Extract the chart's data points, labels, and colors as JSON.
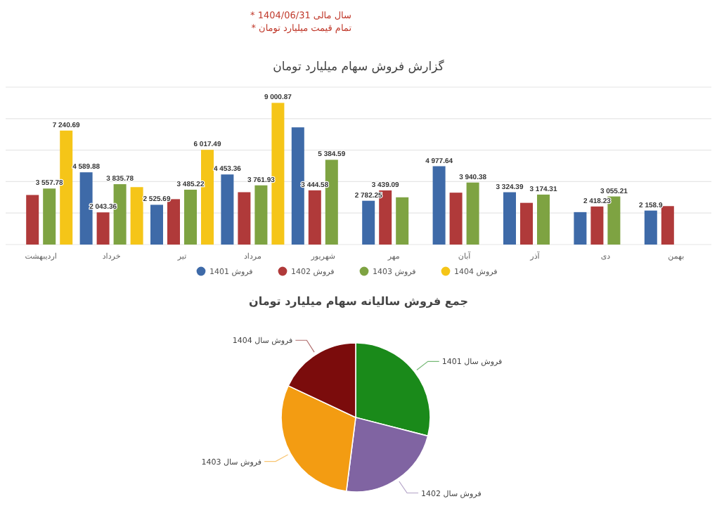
{
  "chart_data": [
    {
      "type": "bar",
      "title": "گزارش فروش سهام میلیارد تومان",
      "annotations": [
        "* سال مالی 1404/06/31",
        "* تمام قیمت میلیارد تومان"
      ],
      "categories": [
        "اردیبهشت",
        "خرداد",
        "تیر",
        "مرداد",
        "شهریور",
        "مهر",
        "آبان",
        "آذر",
        "دی",
        "بهمن"
      ],
      "ylim": [
        0,
        10000
      ],
      "yticks": [
        {
          "value": 0,
          "label": null
        },
        {
          "value": 2000,
          "label": null
        },
        {
          "value": 4000,
          "label": null
        },
        {
          "value": 6000,
          "label": null
        },
        {
          "value": 8000,
          "label": null
        },
        {
          "value": 10000,
          "label": null
        }
      ],
      "grid": "y",
      "legend": "bottom",
      "series": [
        {
          "name": "فروش 1401",
          "color": "#3e6aa8",
          "values": [
            null,
            4589.88,
            2525.69,
            4453.36,
            7446,
            2782.25,
            4977.64,
            3324.39,
            2060,
            2158.9
          ],
          "value_labels": [
            null,
            "4 589.88",
            "2 525.69",
            "4 453.36",
            null,
            "2 782.25",
            "4 977.64",
            "3 324.39",
            null,
            "2 158.9"
          ]
        },
        {
          "name": "فروش 1402",
          "color": "#b03a3a",
          "values": [
            3149,
            2043.36,
            2884,
            3326,
            3444.58,
            3439.09,
            3296,
            2649,
            2418.23,
            2443
          ],
          "value_labels": [
            null,
            "2 043.36",
            null,
            null,
            "3 444.58",
            "3 439.09",
            null,
            null,
            "2 418.23",
            null
          ]
        },
        {
          "name": "فروش 1403",
          "color": "#7ea342",
          "values": [
            3557.78,
            3835.78,
            3485.22,
            3761.93,
            5384.59,
            3002,
            3940.38,
            3174.31,
            3055.21,
            null
          ],
          "value_labels": [
            "3 557.78",
            "3 835.78",
            "3 485.22",
            "3 761.93",
            "5 384.59",
            null,
            "3 940.38",
            "3 174.31",
            "3 055.21",
            null
          ]
        },
        {
          "name": "فروش 1404",
          "color": "#f5c518",
          "values": [
            7240.69,
            3649,
            6017.49,
            9000.87,
            null,
            null,
            null,
            null,
            null,
            null
          ],
          "value_labels": [
            "7 240.69",
            null,
            "6 017.49",
            "9 000.87",
            null,
            null,
            null,
            null,
            null,
            null
          ]
        }
      ]
    },
    {
      "type": "pie",
      "title": "جمع فروش سالیانه سهام میلیارد تومان",
      "categories": [
        "فروش سال 1401",
        "فروش سال 1402",
        "فروش سال 1403",
        "فروش سال 1404"
      ],
      "values": [
        29,
        23,
        30,
        18
      ],
      "colors": [
        "#1a8a1a",
        "#8064a2",
        "#f39c12",
        "#7b0c0c"
      ]
    }
  ]
}
